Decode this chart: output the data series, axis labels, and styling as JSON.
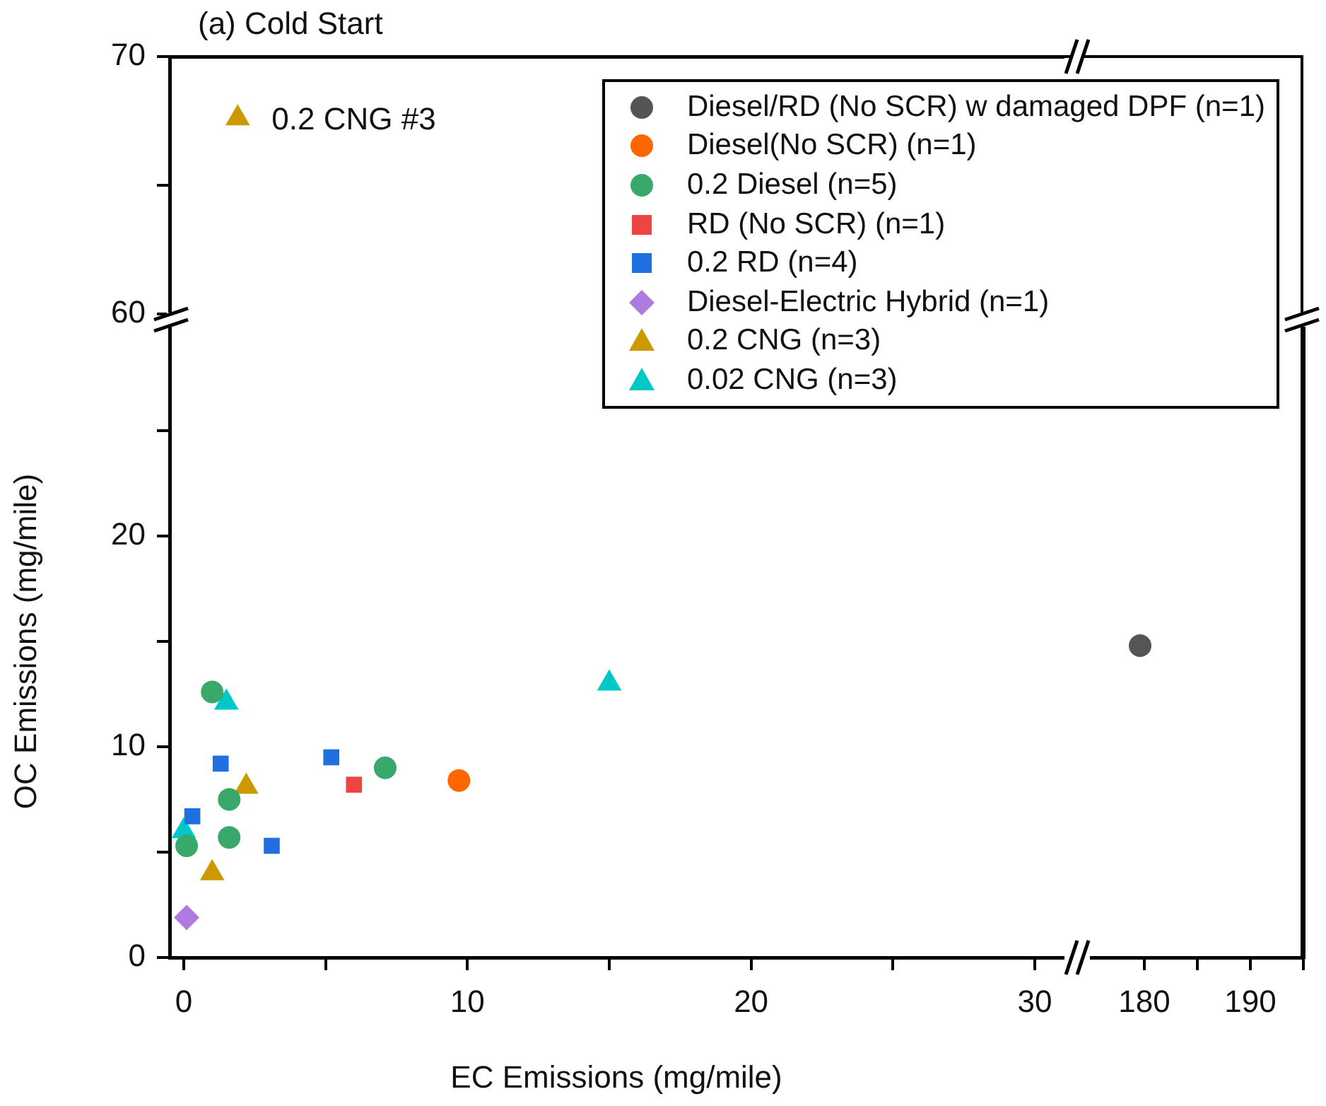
{
  "chart_data": [
    {
      "type": "scatter",
      "title": "(a) Cold Start",
      "xlim": [
        -0.5,
        31
      ],
      "ylim": [
        60,
        70
      ],
      "yticks": [
        60,
        {
          "value": 65,
          "label": null
        },
        70
      ],
      "tick_labels": "y",
      "series": [
        {
          "color": "#cc9900",
          "marker": "triangle",
          "x": [
            1.9
          ],
          "values": [
            67.6
          ]
        }
      ],
      "annotations": [
        {
          "text": "0.2 CNG #3",
          "x": 1.9,
          "y": 67.6
        }
      ]
    },
    {
      "type": "scatter",
      "xlabel": "EC Emissions (mg/mile)",
      "ylabel": "OC Emissions (mg/mile)",
      "xlim": [
        -0.5,
        31
      ],
      "xticks": [
        0,
        {
          "value": 5,
          "label": null
        },
        10,
        {
          "value": 15,
          "label": null
        },
        20,
        {
          "value": 25,
          "label": null
        },
        30
      ],
      "ylim": [
        0,
        30
      ],
      "yticks": [
        0,
        {
          "value": 5,
          "label": null
        },
        10,
        {
          "value": 15,
          "label": null
        },
        20,
        {
          "value": 25,
          "label": null
        }
      ],
      "legend": "top right",
      "series": [
        {
          "name": "Diesel/RD (No SCR) w damaged DPF (n=1)",
          "color": "#555555",
          "marker": "circle"
        },
        {
          "name": "Diesel(No SCR) (n=1)",
          "color": "#ff6600",
          "marker": "circle",
          "x": [
            9.7
          ],
          "values": [
            8.4
          ]
        },
        {
          "name": "0.2 Diesel (n=5)",
          "color": "#38a96a",
          "marker": "circle",
          "x": [
            1.0,
            1.6,
            1.6,
            0.1,
            7.1
          ],
          "values": [
            12.6,
            7.5,
            5.7,
            5.3,
            9.0
          ]
        },
        {
          "name": "RD (No SCR) (n=1)",
          "color": "#ee4444",
          "marker": "square",
          "x": [
            6.0
          ],
          "values": [
            8.2
          ]
        },
        {
          "name": "0.2 RD (n=4)",
          "color": "#1f6fe0",
          "marker": "square",
          "x": [
            1.3,
            5.2,
            0.3,
            3.1
          ],
          "values": [
            9.2,
            9.5,
            6.7,
            5.3
          ]
        },
        {
          "name": "Diesel-Electric Hybrid (n=1)",
          "color": "#b07be0",
          "marker": "diamond",
          "x": [
            0.1
          ],
          "values": [
            1.9
          ]
        },
        {
          "name": "0.2 CNG (n=3)",
          "color": "#cc9900",
          "marker": "triangle",
          "x": [
            2.2,
            1.0
          ],
          "values": [
            8.1,
            4.0
          ]
        },
        {
          "name": "0.02 CNG (n=3)",
          "color": "#00c8c8",
          "marker": "triangle",
          "x": [
            1.5,
            0.0,
            15.0
          ],
          "values": [
            12.1,
            6.0,
            13.0
          ]
        }
      ]
    },
    {
      "type": "scatter",
      "xlim": [
        175,
        195
      ],
      "xticks": [
        180,
        {
          "value": 185,
          "label": null
        },
        190,
        {
          "value": 195,
          "label": null
        }
      ],
      "ylim": [
        0,
        30
      ],
      "tick_labels": "x",
      "series": [
        {
          "color": "#555555",
          "marker": "circle",
          "x": [
            179.6
          ],
          "values": [
            14.8
          ]
        }
      ]
    }
  ]
}
